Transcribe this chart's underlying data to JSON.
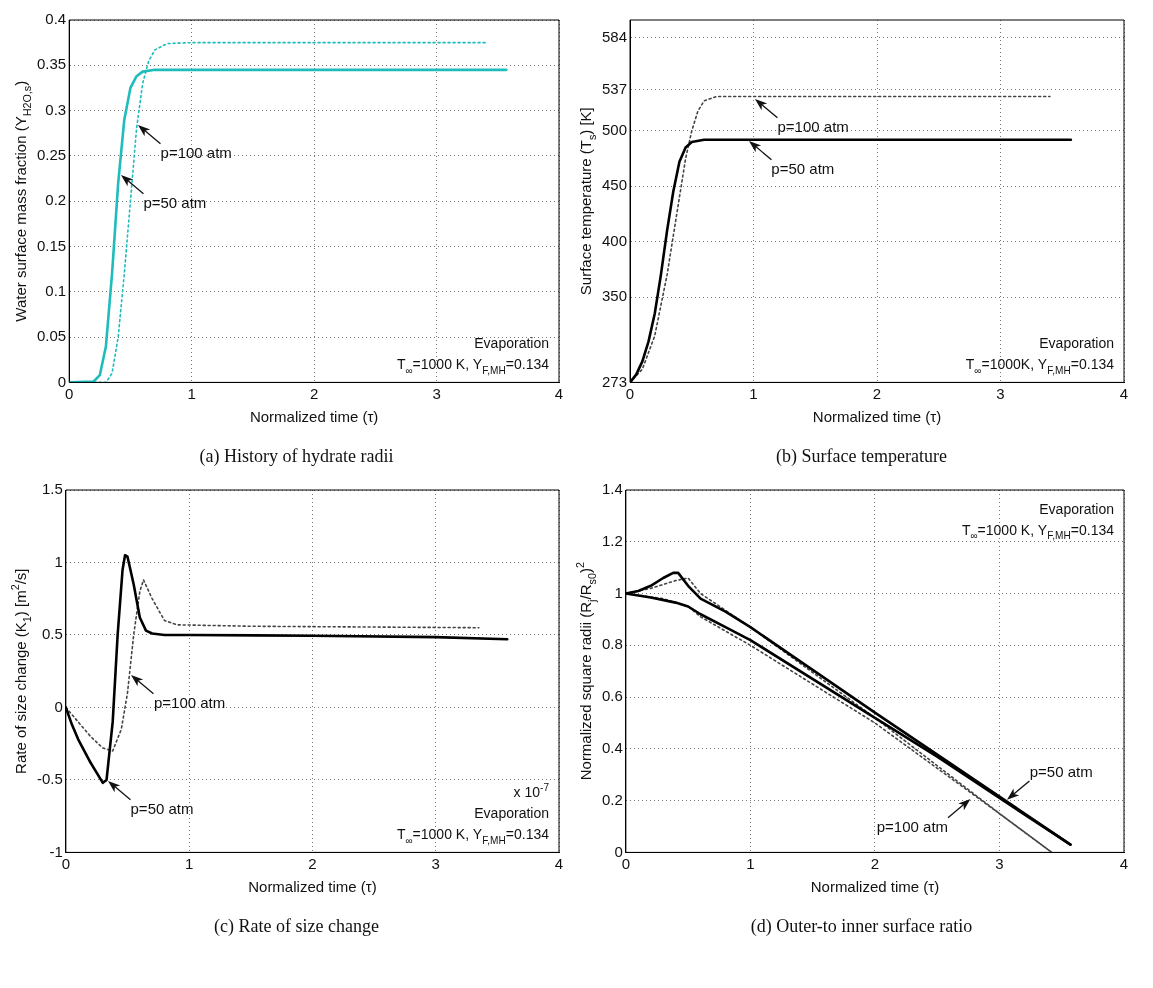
{
  "chart_data": [
    {
      "type": "line",
      "title": "(a) History of hydrate radii",
      "xlabel": "Normalized time (τ)",
      "ylabel": "Water surface mass fraction (Y$_{H2O,s}$)",
      "xlim": [
        0,
        4
      ],
      "xticks": [
        0,
        1,
        2,
        3,
        4
      ],
      "ylim": [
        0,
        0.4
      ],
      "yticks": [
        0,
        0.05,
        0.1,
        0.15,
        0.2,
        0.25,
        0.3,
        0.35,
        0.4
      ],
      "grid": true,
      "marker": "none",
      "series": [
        {
          "color": "#1fbcbc",
          "line_style": "solid",
          "x": [
            0,
            0.2,
            0.25,
            0.3,
            0.35,
            0.4,
            0.45,
            0.5,
            0.55,
            0.6,
            0.7,
            1,
            3.57
          ],
          "values": [
            0,
            0.001,
            0.008,
            0.04,
            0.12,
            0.22,
            0.29,
            0.325,
            0.338,
            0.343,
            0.345,
            0.345,
            0.345
          ]
        },
        {
          "color": "#1fbcbc",
          "line_style": "dotted",
          "x": [
            0,
            0.3,
            0.35,
            0.4,
            0.45,
            0.5,
            0.55,
            0.6,
            0.65,
            0.7,
            0.8,
            1,
            3.4
          ],
          "values": [
            0,
            0,
            0.01,
            0.05,
            0.12,
            0.2,
            0.28,
            0.33,
            0.355,
            0.367,
            0.374,
            0.375,
            0.375
          ]
        }
      ],
      "annotations": [
        "Evaporation",
        "T$_{∞}$=1000 K, Y$_{F,MH}$=0.134",
        {
          "text": "p=100 atm",
          "x": 0.55,
          "y": 0.285
        },
        {
          "text": "p=50 atm",
          "x": 0.41,
          "y": 0.23
        }
      ]
    },
    {
      "type": "line",
      "title": "(b) Surface temperature",
      "xlabel": "Normalized time (τ)",
      "ylabel": "Surface temperature (T$_{s}$) [K]",
      "xlim": [
        0,
        4
      ],
      "xticks": [
        0,
        1,
        2,
        3,
        4
      ],
      "ylim": [
        273,
        600
      ],
      "yticks": [
        273,
        350,
        400,
        450,
        500,
        537,
        584
      ],
      "grid": true,
      "marker": "none",
      "series": [
        {
          "color": "#000000",
          "line_style": "solid",
          "x": [
            0,
            0.05,
            0.1,
            0.15,
            0.2,
            0.25,
            0.3,
            0.35,
            0.4,
            0.45,
            0.5,
            0.6,
            1,
            3.57
          ],
          "values": [
            273,
            280,
            292,
            310,
            335,
            370,
            410,
            445,
            472,
            485,
            490,
            492,
            492,
            492
          ]
        },
        {
          "color": "#444444",
          "line_style": "dotted",
          "x": [
            0,
            0.1,
            0.2,
            0.3,
            0.35,
            0.4,
            0.45,
            0.5,
            0.55,
            0.6,
            0.7,
            1,
            3.4
          ],
          "values": [
            273,
            285,
            315,
            370,
            405,
            440,
            475,
            500,
            518,
            527,
            531,
            531,
            531
          ]
        }
      ],
      "annotations": [
        "Evaporation",
        "T$_{∞}$=1000K, Y$_{F,MH}$=0.134",
        {
          "text": "p=100 atm",
          "x": 1.0,
          "y": 530
        },
        {
          "text": "p=50 atm",
          "x": 0.95,
          "y": 492
        }
      ]
    },
    {
      "type": "line",
      "title": "(c) Rate of size change",
      "xlabel": "Normalized time (τ)",
      "ylabel": "Rate of size change (K$_{1}$) [m$^{2}$/s]",
      "xlim": [
        0,
        4
      ],
      "xticks": [
        0,
        1,
        2,
        3,
        4
      ],
      "ylim": [
        -1,
        1.5
      ],
      "yticks": [
        -1,
        -0.5,
        0,
        0.5,
        1,
        1.5
      ],
      "grid": true,
      "marker": "none",
      "series": [
        {
          "color": "#000000",
          "line_style": "solid",
          "x": [
            0,
            0.05,
            0.1,
            0.2,
            0.3,
            0.33,
            0.38,
            0.42,
            0.46,
            0.48,
            0.5,
            0.55,
            0.6,
            0.65,
            0.7,
            0.8,
            1,
            2,
            3,
            3.58
          ],
          "values": [
            0,
            -0.12,
            -0.22,
            -0.38,
            -0.52,
            -0.5,
            -0.1,
            0.5,
            0.95,
            1.05,
            1.04,
            0.85,
            0.62,
            0.53,
            0.51,
            0.5,
            0.5,
            0.495,
            0.485,
            0.47
          ]
        },
        {
          "color": "#444444",
          "line_style": "dotted",
          "x": [
            0,
            0.1,
            0.2,
            0.3,
            0.38,
            0.45,
            0.5,
            0.55,
            0.6,
            0.63,
            0.7,
            0.8,
            0.9,
            1.5,
            3.35
          ],
          "values": [
            0,
            -0.1,
            -0.2,
            -0.28,
            -0.3,
            -0.15,
            0.1,
            0.5,
            0.8,
            0.88,
            0.75,
            0.6,
            0.57,
            0.56,
            0.55
          ]
        }
      ],
      "annotations": [
        "x 10$^{-7}$",
        "Evaporation",
        "T$_{∞}$=1000 K, Y$_{F,MH}$=0.134",
        {
          "text": "p=100 atm",
          "x": 0.52,
          "y": 0.23
        },
        {
          "text": "p=50 atm",
          "x": 0.33,
          "y": -0.5
        }
      ]
    },
    {
      "type": "line",
      "title": "(d) Outer-to inner surface ratio",
      "xlabel": "Normalized time (τ)",
      "ylabel": "Normalized square radii (R$_{j}$/R$_{s0}$)$^{2}$",
      "xlim": [
        0,
        4
      ],
      "xticks": [
        0,
        1,
        2,
        3,
        4
      ],
      "ylim": [
        0,
        1.4
      ],
      "yticks": [
        0,
        0.2,
        0.4,
        0.6,
        0.8,
        1,
        1.2,
        1.4
      ],
      "grid": true,
      "marker": "none",
      "series": [
        {
          "color": "#000000",
          "line_style": "solid",
          "x": [
            0,
            0.1,
            0.2,
            0.3,
            0.38,
            0.42,
            0.5,
            0.6,
            0.8,
            1,
            2,
            3,
            3.57
          ],
          "values": [
            1,
            1.01,
            1.03,
            1.06,
            1.08,
            1.08,
            1.03,
            0.98,
            0.93,
            0.87,
            0.54,
            0.216,
            0.03
          ]
        },
        {
          "color": "#000000",
          "line_style": "solid",
          "x": [
            0,
            0.2,
            0.4,
            0.5,
            0.6,
            0.8,
            1,
            2,
            2.5,
            3,
            3.57
          ],
          "values": [
            1,
            0.985,
            0.965,
            0.95,
            0.92,
            0.87,
            0.82,
            0.52,
            0.37,
            0.21,
            0.03
          ]
        },
        {
          "color": "#444444",
          "line_style": "dotted",
          "x": [
            0,
            0.2,
            0.4,
            0.5,
            0.6,
            1,
            2,
            3,
            3.42
          ],
          "values": [
            1,
            1.02,
            1.05,
            1.06,
            1.0,
            0.87,
            0.52,
            0.15,
            0
          ]
        },
        {
          "color": "#444444",
          "line_style": "dotted",
          "x": [
            0,
            0.3,
            0.5,
            0.6,
            1,
            2,
            3,
            3.42
          ],
          "values": [
            1,
            0.98,
            0.95,
            0.91,
            0.8,
            0.5,
            0.15,
            0
          ]
        }
      ],
      "annotations": [
        "Evaporation",
        "T$_{∞}$=1000 K, Y$_{F,MH}$=0.134",
        {
          "text": "p=50 atm",
          "x": 3.05,
          "y": 0.2
        },
        {
          "text": "p=100 atm",
          "x": 2.78,
          "y": 0.21
        }
      ]
    }
  ]
}
